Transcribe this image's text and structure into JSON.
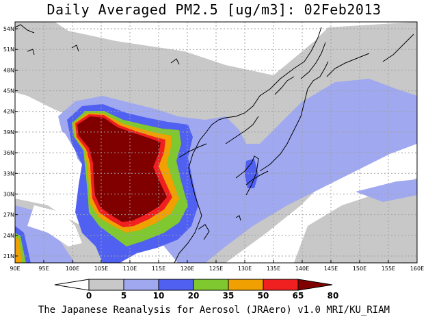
{
  "title": "Daily Averaged PM2.5 [ug/m3]: 02Feb2013",
  "footer": "The Japanese Reanalysis for Aerosol (JRAero) v1.0 MRI/KU_RIAM",
  "map": {
    "lon_range": [
      90,
      160
    ],
    "lat_range": [
      20,
      55
    ],
    "lon_ticks": [
      "90E",
      "95E",
      "100E",
      "105E",
      "110E",
      "115E",
      "120E",
      "125E",
      "130E",
      "135E",
      "140E",
      "145E",
      "150E",
      "155E",
      "160E"
    ],
    "lat_ticks": [
      "21N",
      "24N",
      "27N",
      "30N",
      "33N",
      "36N",
      "39N",
      "42N",
      "45N",
      "48N",
      "51N",
      "54N"
    ]
  },
  "colorbar": {
    "labels": [
      "0",
      "5",
      "10",
      "20",
      "35",
      "50",
      "65",
      "80"
    ],
    "colors": [
      "#ffffff",
      "#c8c8c8",
      "#a0a8f0",
      "#5060f0",
      "#80c830",
      "#f0a000",
      "#f02020",
      "#800000"
    ]
  },
  "colors": {
    "land_gray": "#c8c8c8",
    "light_blue": "#a0a8f0",
    "blue": "#5060f0",
    "green": "#80c830",
    "orange": "#f0a000",
    "red": "#f02020",
    "dark_red": "#800000",
    "grid": "#a0a0a0"
  }
}
